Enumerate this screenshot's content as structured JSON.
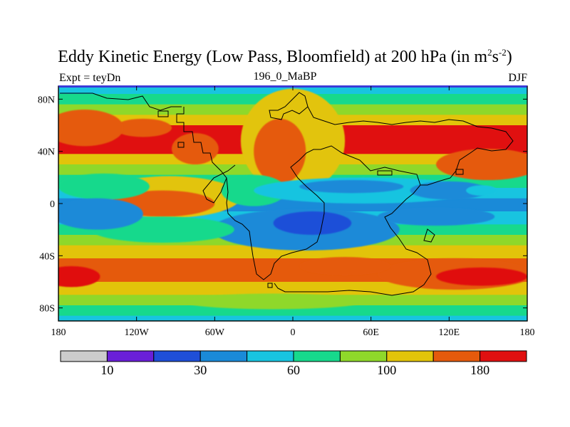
{
  "chart_data": {
    "type": "heatmap",
    "title": "Eddy Kinetic Energy (Low Pass, Bloomfield) at 200 hPa (in m",
    "title_sup1": "2",
    "title_mid": "s",
    "title_sup2": "-2",
    "title_end": ")",
    "subtitle_left": "Expt = teyDn",
    "subtitle_center": "196_0_MaBP",
    "subtitle_right": "DJF",
    "units": "m2 s-2",
    "xlim": [
      -180,
      180
    ],
    "ylim": [
      -90,
      90
    ],
    "x_ticks": [
      {
        "value": -180,
        "label": "180"
      },
      {
        "value": -120,
        "label": "120W"
      },
      {
        "value": -60,
        "label": "60W"
      },
      {
        "value": 0,
        "label": "0"
      },
      {
        "value": 60,
        "label": "60E"
      },
      {
        "value": 120,
        "label": "120E"
      },
      {
        "value": 180,
        "label": "180"
      }
    ],
    "y_ticks": [
      {
        "value": 80,
        "label": "80N"
      },
      {
        "value": 40,
        "label": "40N"
      },
      {
        "value": 0,
        "label": "0"
      },
      {
        "value": -40,
        "label": "40S"
      },
      {
        "value": -80,
        "label": "80S"
      }
    ],
    "colorbar": {
      "colors": [
        "#cccccc",
        "#6a1fd8",
        "#1f4fd8",
        "#1a8ad8",
        "#18c4e0",
        "#17d98c",
        "#8fd82a",
        "#e2c40a",
        "#e55a0c",
        "#e01010"
      ],
      "labels": [
        {
          "boundary": 1,
          "label": "10"
        },
        {
          "boundary": 3,
          "label": "30"
        },
        {
          "boundary": 5,
          "label": "60"
        },
        {
          "boundary": 7,
          "label": "100"
        },
        {
          "boundary": 9,
          "label": "180"
        }
      ]
    },
    "bands": [
      {
        "lat_top": 90,
        "lat_bottom": 84,
        "level": 4
      },
      {
        "lat_top": 84,
        "lat_bottom": 76,
        "level": 5
      },
      {
        "lat_top": 76,
        "lat_bottom": 68,
        "level": 6
      },
      {
        "lat_top": 68,
        "lat_bottom": 60,
        "level": 7
      },
      {
        "lat_top": 60,
        "lat_bottom": 38,
        "level": 9
      },
      {
        "lat_top": 38,
        "lat_bottom": 30,
        "level": 7
      },
      {
        "lat_top": 30,
        "lat_bottom": 22,
        "level": 6
      },
      {
        "lat_top": 22,
        "lat_bottom": 12,
        "level": 5
      },
      {
        "lat_top": 12,
        "lat_bottom": 4,
        "level": 4
      },
      {
        "lat_top": 4,
        "lat_bottom": -6,
        "level": 3
      },
      {
        "lat_top": -6,
        "lat_bottom": -16,
        "level": 4
      },
      {
        "lat_top": -16,
        "lat_bottom": -24,
        "level": 5
      },
      {
        "lat_top": -24,
        "lat_bottom": -32,
        "level": 6
      },
      {
        "lat_top": -32,
        "lat_bottom": -42,
        "level": 7
      },
      {
        "lat_top": -42,
        "lat_bottom": -60,
        "level": 8
      },
      {
        "lat_top": -60,
        "lat_bottom": -70,
        "level": 7
      },
      {
        "lat_top": -70,
        "lat_bottom": -78,
        "level": 6
      },
      {
        "lat_top": -78,
        "lat_bottom": -86,
        "level": 5
      },
      {
        "lat_top": -86,
        "lat_bottom": -90,
        "level": 4
      }
    ],
    "blobs": [
      {
        "lon": 0,
        "lat": 48,
        "rlon": 40,
        "rlat": 40,
        "level": 7
      },
      {
        "lon": -10,
        "lat": 40,
        "rlon": 20,
        "rlat": 25,
        "level": 8
      },
      {
        "lon": -115,
        "lat": 58,
        "rlon": 22,
        "rlat": 7,
        "level": 8
      },
      {
        "lon": -75,
        "lat": 42,
        "rlon": 18,
        "rlat": 12,
        "level": 8
      },
      {
        "lon": 150,
        "lat": 30,
        "rlon": 40,
        "rlat": 12,
        "level": 8
      },
      {
        "lon": -95,
        "lat": 5,
        "rlon": 55,
        "rlat": 16,
        "level": 7
      },
      {
        "lon": -100,
        "lat": 0,
        "rlon": 40,
        "rlat": 10,
        "level": 8
      },
      {
        "lon": -30,
        "lat": 10,
        "rlon": 25,
        "rlat": 12,
        "level": 5
      },
      {
        "lon": 55,
        "lat": 10,
        "rlon": 85,
        "rlat": 10,
        "level": 4
      },
      {
        "lon": 45,
        "lat": 13,
        "rlon": 40,
        "rlat": 5,
        "level": 3
      },
      {
        "lon": 120,
        "lat": 10,
        "rlon": 30,
        "rlat": 7,
        "level": 3
      },
      {
        "lon": 145,
        "lat": 10,
        "rlon": 12,
        "rlat": 4,
        "level": 4
      },
      {
        "lon": 10,
        "lat": -20,
        "rlon": 72,
        "rlat": 16,
        "level": 3
      },
      {
        "lon": 15,
        "lat": -15,
        "rlon": 30,
        "rlat": 9,
        "level": 2
      },
      {
        "lon": 110,
        "lat": -10,
        "rlon": 45,
        "rlat": 7,
        "level": 3
      },
      {
        "lon": -100,
        "lat": -20,
        "rlon": 55,
        "rlat": 10,
        "level": 5
      },
      {
        "lon": -145,
        "lat": 13,
        "rlon": 35,
        "rlat": 10,
        "level": 5
      },
      {
        "lon": -150,
        "lat": -8,
        "rlon": 35,
        "rlat": 12,
        "level": 3
      },
      {
        "lon": 125,
        "lat": -54,
        "rlon": 60,
        "rlat": 12,
        "level": 8
      },
      {
        "lon": 145,
        "lat": -56,
        "rlon": 35,
        "rlat": 7,
        "level": 9
      },
      {
        "lon": -170,
        "lat": -56,
        "rlon": 22,
        "rlat": 8,
        "level": 9
      },
      {
        "lon": 40,
        "lat": -48,
        "rlon": 35,
        "rlat": 7,
        "level": 8
      },
      {
        "lon": -160,
        "lat": 58,
        "rlon": 30,
        "rlat": 14,
        "level": 8
      },
      {
        "lon": -15,
        "lat": -75,
        "rlon": 70,
        "rlat": 6,
        "level": 6
      }
    ]
  }
}
